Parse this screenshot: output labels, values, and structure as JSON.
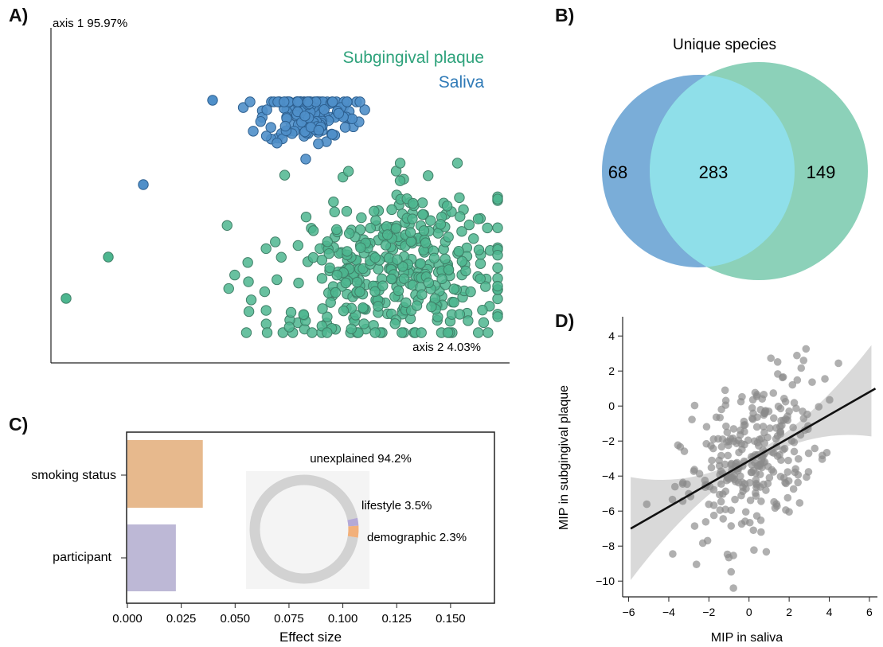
{
  "panels": {
    "a": "A)",
    "b": "B)",
    "c": "C)",
    "d": "D)"
  },
  "colors": {
    "plaque": "#2ea27b",
    "plaque_fill": "#4db68f",
    "saliva": "#2f7ab7",
    "saliva_fill": "#4f8fc9",
    "venn_saliva": "#7aadd8",
    "venn_plaque": "#8cd1b9",
    "venn_overlap": "#8fdfe9",
    "bar_smoking": "#e7b98d",
    "bar_participant": "#bdb8d6",
    "donut_grey": "#d2d2d2",
    "donut_lifestyle": "#f2b07a",
    "donut_demographic": "#b4a9d6",
    "scatter_grey": "#8a8a8a",
    "ci_band": "#d9d9d9"
  },
  "chart_data": [
    {
      "type": "scatter",
      "panel": "A)",
      "ylabel": "axis 1 95.97%",
      "xlabel": "axis 2 4.03%",
      "legend": [
        "Subgingival plaque",
        "Saliva"
      ],
      "legend_placement": "top-right",
      "series": [
        {
          "name": "Subgingival plaque",
          "cluster_center": [
            0.45,
            -0.35
          ],
          "spread": [
            0.28,
            0.17
          ],
          "count": 380
        },
        {
          "name": "Saliva",
          "cluster_center": [
            0.13,
            0.35
          ],
          "spread": [
            0.1,
            0.07
          ],
          "count": 170
        }
      ]
    },
    {
      "type": "venn",
      "panel": "B)",
      "title": "Unique species",
      "sets": [
        {
          "name": "Saliva",
          "only": 68
        },
        {
          "name": "Subgingival plaque",
          "only": 149
        }
      ],
      "overlap": 283
    },
    {
      "type": "bar",
      "panel": "C)",
      "orientation": "horizontal",
      "categories": [
        "smoking status",
        "participant"
      ],
      "values": [
        0.035,
        0.0225
      ],
      "xlabel": "Effect size",
      "xlim": [
        0,
        0.17
      ],
      "xticks": [
        "0.000",
        "0.025",
        "0.050",
        "0.075",
        "0.100",
        "0.125",
        "0.150"
      ],
      "inset": {
        "type": "pie",
        "slices": [
          {
            "label": "unexplained 94.2%",
            "value": 94.2
          },
          {
            "label": "lifestyle 3.5%",
            "value": 3.5
          },
          {
            "label": "demographic 2.3%",
            "value": 2.3
          }
        ]
      }
    },
    {
      "type": "scatter",
      "panel": "D)",
      "xlabel": "MIP in saliva",
      "ylabel": "MIP in subgingival plaque",
      "xlim": [
        -6.3,
        6.4
      ],
      "ylim": [
        -10.9,
        5.1
      ],
      "xticks": [
        "−6",
        "−4",
        "−2",
        "0",
        "2",
        "4",
        "6"
      ],
      "yticks": [
        "4",
        "2",
        "0",
        "−2",
        "−4",
        "−6",
        "−8",
        "−10"
      ],
      "regression": {
        "x": [
          -5.9,
          6.3
        ],
        "y": [
          -7.0,
          1.0
        ]
      },
      "points_approx_count": 290
    }
  ]
}
